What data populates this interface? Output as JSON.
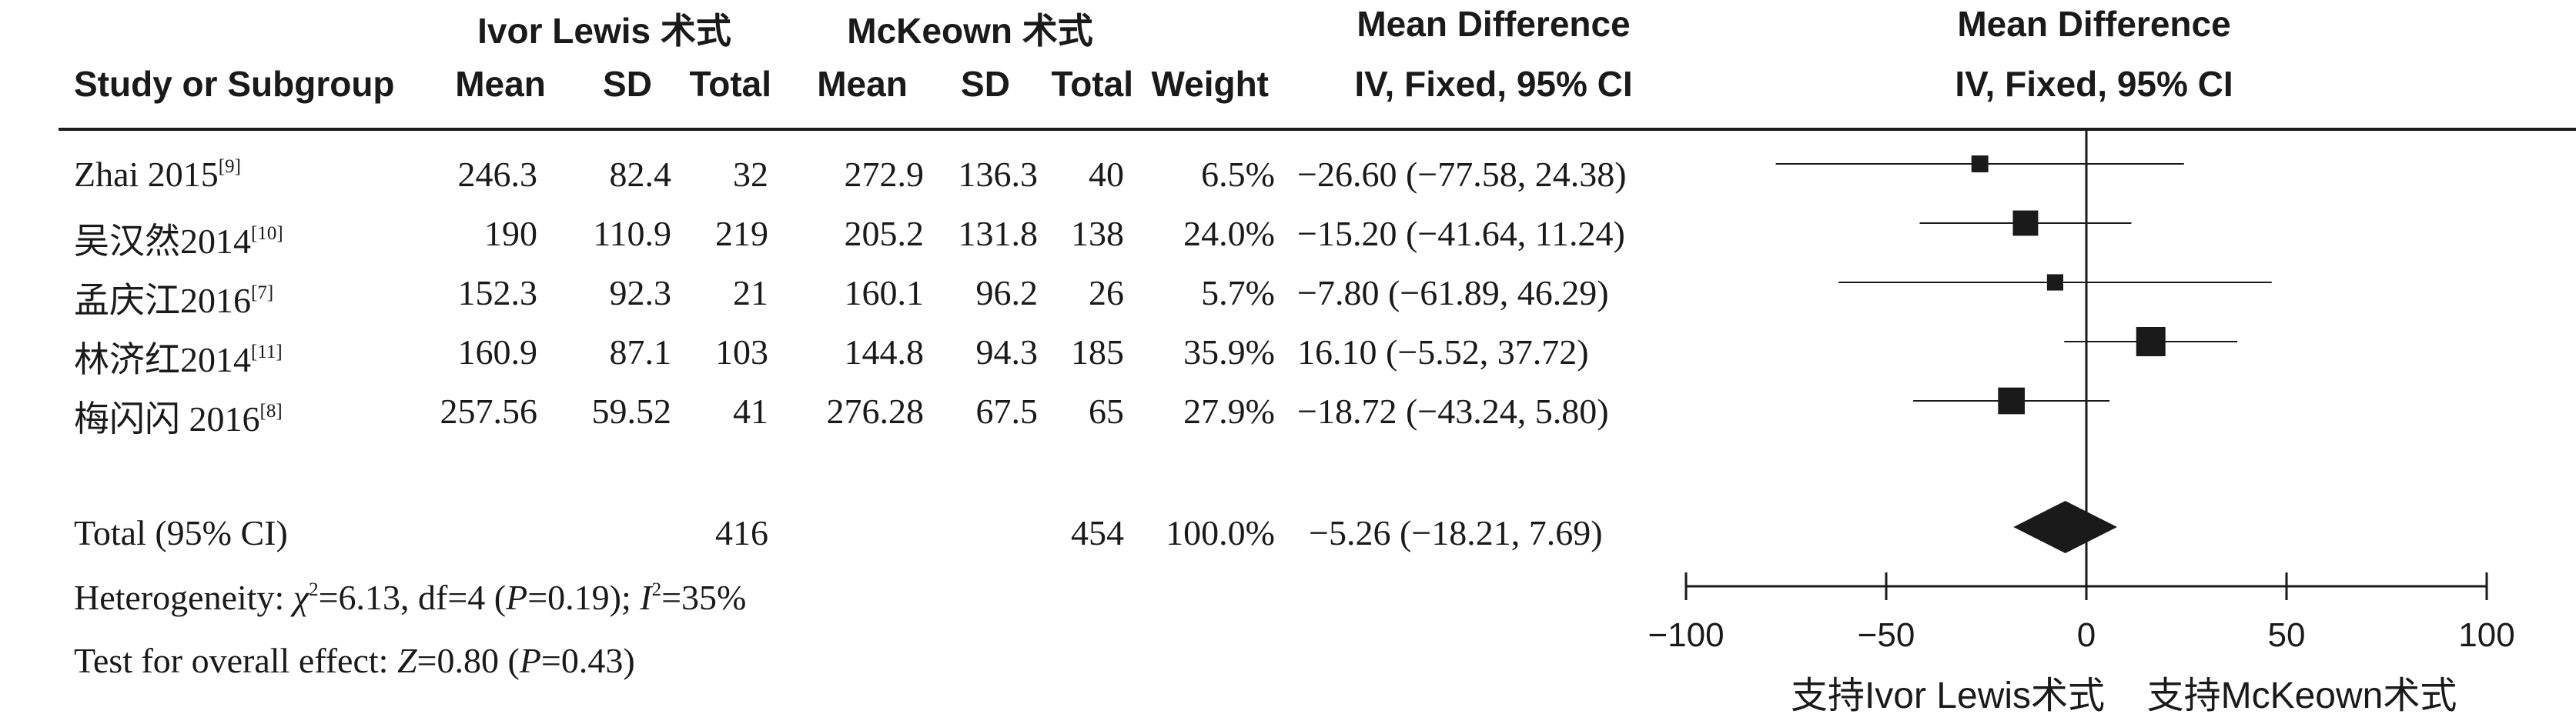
{
  "header": {
    "group1_name": "Ivor Lewis 术式",
    "group2_name": "McKeown 术式",
    "study_col": "Study or Subgroup",
    "mean1": "Mean",
    "sd1": "SD",
    "total1": "Total",
    "mean2": "Mean",
    "sd2": "SD",
    "total2": "Total",
    "weight": "Weight",
    "md_table_title": "Mean Difference",
    "md_table_sub": "IV, Fixed, 95% CI",
    "md_plot_title": "Mean Difference",
    "md_plot_sub": "IV, Fixed, 95% CI"
  },
  "rows": [
    {
      "study": "Zhai 2015",
      "ref": "[9]",
      "mean1": "246.3",
      "sd1": "82.4",
      "total1": "32",
      "mean2": "272.9",
      "sd2": "136.3",
      "total2": "40",
      "weight": "6.5%",
      "ci": "−26.60 (−77.58, 24.38)"
    },
    {
      "study": "吴汉然2014",
      "ref": "[10]",
      "mean1": "190",
      "sd1": "110.9",
      "total1": "219",
      "mean2": "205.2",
      "sd2": "131.8",
      "total2": "138",
      "weight": "24.0%",
      "ci": "−15.20 (−41.64, 11.24)"
    },
    {
      "study": "孟庆江2016",
      "ref": "[7]",
      "mean1": "152.3",
      "sd1": "92.3",
      "total1": "21",
      "mean2": "160.1",
      "sd2": "96.2",
      "total2": "26",
      "weight": "5.7%",
      "ci": "−7.80 (−61.89, 46.29)"
    },
    {
      "study": "林济红2014",
      "ref": "[11]",
      "mean1": "160.9",
      "sd1": "87.1",
      "total1": "103",
      "mean2": "144.8",
      "sd2": "94.3",
      "total2": "185",
      "weight": "35.9%",
      "ci": "16.10 (−5.52, 37.72)"
    },
    {
      "study": "梅闪闪 2016",
      "ref": "[8]",
      "mean1": "257.56",
      "sd1": "59.52",
      "total1": "41",
      "mean2": "276.28",
      "sd2": "67.5",
      "total2": "65",
      "weight": "27.9%",
      "ci": "−18.72 (−43.24, 5.80)"
    }
  ],
  "total": {
    "label": "Total (95% CI)",
    "total1": "416",
    "total2": "454",
    "weight": "100.0%",
    "ci": "−5.26 (−18.21, 7.69)"
  },
  "heterogeneity": {
    "prefix": "Heterogeneity: ",
    "chi_sym": "χ",
    "chi_sup": "2",
    "chi_rest": "=6.13, df=4 (",
    "p_sym": "P",
    "p_rest": "=0.19); ",
    "i_sym": "I",
    "i_sup": "2",
    "i_rest": "=35%"
  },
  "overall": {
    "prefix": "Test for overall effect: ",
    "z_sym": "Z",
    "z_rest": "=0.80 (",
    "p_sym": "P",
    "p_rest": "=0.43)"
  },
  "chart_data": {
    "type": "forest",
    "xlim": [
      -100,
      100
    ],
    "ticks": [
      -100,
      -50,
      0,
      50,
      100
    ],
    "tick_labels": [
      "−100",
      "−50",
      "0",
      "50",
      "100"
    ],
    "favours_left": "支持Ivor Lewis术式",
    "favours_right": "支持McKeown术式",
    "studies": [
      {
        "md": -26.6,
        "lo": -77.58,
        "hi": 24.38,
        "weight": 6.5
      },
      {
        "md": -15.2,
        "lo": -41.64,
        "hi": 11.24,
        "weight": 24.0
      },
      {
        "md": -7.8,
        "lo": -61.89,
        "hi": 46.29,
        "weight": 5.7
      },
      {
        "md": 16.1,
        "lo": -5.52,
        "hi": 37.72,
        "weight": 35.9
      },
      {
        "md": -18.72,
        "lo": -43.24,
        "hi": 5.8,
        "weight": 27.9
      }
    ],
    "pooled": {
      "md": -5.26,
      "lo": -18.21,
      "hi": 7.69
    }
  }
}
